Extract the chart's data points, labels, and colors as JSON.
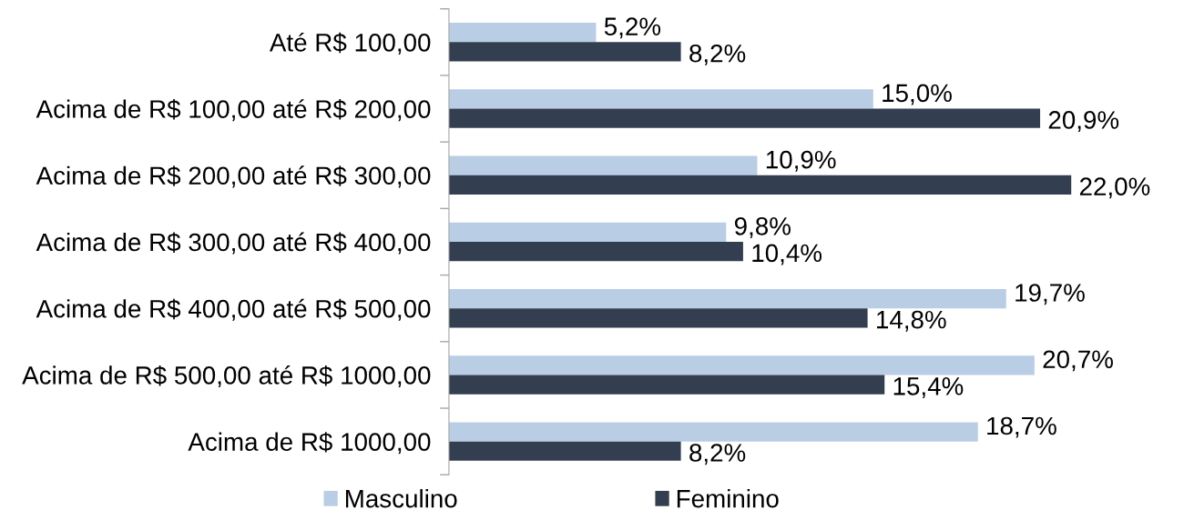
{
  "chart_data": {
    "type": "bar",
    "orientation": "horizontal",
    "categories": [
      "Até R$ 100,00",
      "Acima de R$ 100,00 até R$ 200,00",
      "Acima de R$ 200,00 até R$ 300,00",
      "Acima de R$ 300,00 até R$ 400,00",
      "Acima de R$ 400,00 até R$ 500,00",
      "Acima de R$ 500,00 até R$ 1000,00",
      "Acima de R$ 1000,00"
    ],
    "series": [
      {
        "name": "Masculino",
        "color": "#b9cde5",
        "values": [
          5.2,
          15.0,
          10.9,
          9.8,
          19.7,
          20.7,
          18.7
        ],
        "value_labels": [
          "5,2%",
          "15,0%",
          "10,9%",
          "9,8%",
          "19,7%",
          "20,7%",
          "18,7%"
        ]
      },
      {
        "name": "Feminino",
        "color": "#333f50",
        "values": [
          8.2,
          20.9,
          22.0,
          10.4,
          14.8,
          15.4,
          8.2
        ],
        "value_labels": [
          "8,2%",
          "20,9%",
          "22,0%",
          "10,4%",
          "14,8%",
          "15,4%",
          "8,2%"
        ]
      }
    ],
    "legend": "bottom",
    "tick_labels": "y"
  }
}
